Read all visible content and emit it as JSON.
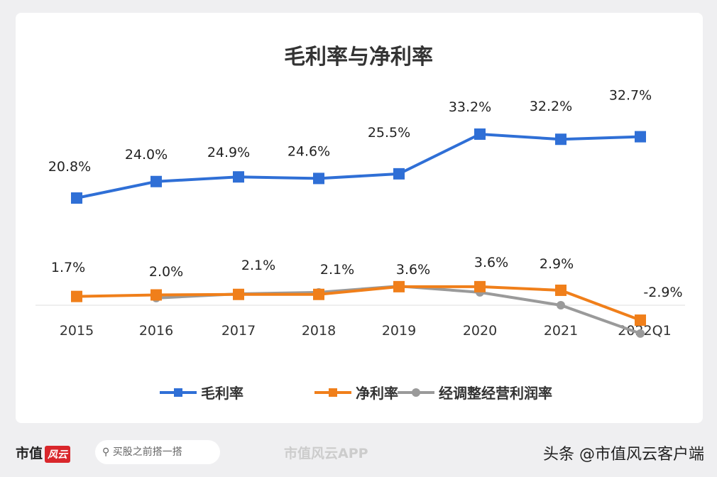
{
  "chart_data": {
    "type": "line",
    "title": "毛利率与净利率",
    "categories": [
      "2015",
      "2016",
      "2017",
      "2018",
      "2019",
      "2020",
      "2021",
      "2022Q1"
    ],
    "series": [
      {
        "name": "毛利率",
        "color": "#2f6fd6",
        "values": [
          20.8,
          24.0,
          24.9,
          24.6,
          25.5,
          33.2,
          32.2,
          32.7
        ],
        "labels": [
          "20.8%",
          "24.0%",
          "24.9%",
          "24.6%",
          "25.5%",
          "33.2%",
          "32.2%",
          "32.7%"
        ],
        "marker": "square"
      },
      {
        "name": "净利率",
        "color": "#f07f1a",
        "values": [
          1.7,
          2.0,
          2.1,
          2.1,
          3.6,
          3.6,
          2.9,
          -2.9
        ],
        "labels": [
          "1.7%",
          "2.0%",
          "2.1%",
          "2.1%",
          "3.6%",
          "3.6%",
          "2.9%",
          "-2.9%"
        ],
        "marker": "square"
      },
      {
        "name": "经调整经营利润率",
        "color": "#9a9a9a",
        "values": [
          null,
          1.4,
          2.2,
          2.5,
          3.7,
          2.5,
          0.0,
          -5.5
        ],
        "marker": "circle"
      }
    ],
    "legend": "bottom",
    "grid": false
  },
  "footer": {
    "brand": "市值",
    "brand_logo": "风云",
    "search": "买股之前搭一搭",
    "app": "市值风云APP",
    "credit": "头条 @市值风云客户端"
  }
}
